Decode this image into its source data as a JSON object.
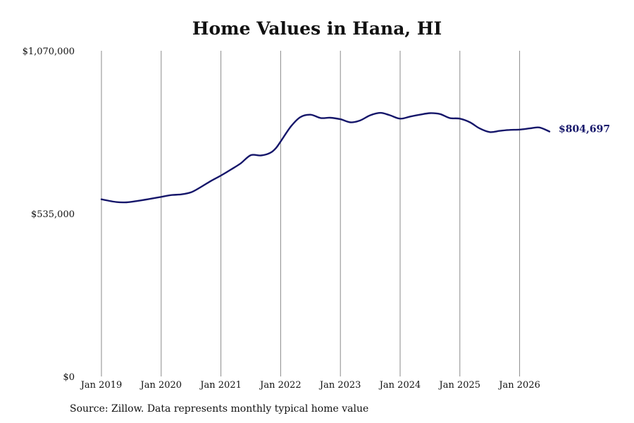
{
  "chart_data": {
    "type": "line",
    "title": "Home Values in Hana, HI",
    "xlabel": "",
    "ylabel": "",
    "ylim": [
      0,
      1070000
    ],
    "y_ticks": [
      {
        "value": 0,
        "label": "$0"
      },
      {
        "value": 535000,
        "label": "$535,000"
      },
      {
        "value": 1070000,
        "label": "$1,070,000"
      }
    ],
    "x_ticks": [
      {
        "value": 2019,
        "label": "Jan 2019"
      },
      {
        "value": 2020,
        "label": "Jan 2020"
      },
      {
        "value": 2021,
        "label": "Jan 2021"
      },
      {
        "value": 2022,
        "label": "Jan 2022"
      },
      {
        "value": 2023,
        "label": "Jan 2023"
      },
      {
        "value": 2024,
        "label": "Jan 2024"
      },
      {
        "value": 2025,
        "label": "Jan 2025"
      },
      {
        "value": 2026,
        "label": "Jan 2026"
      }
    ],
    "xlim": [
      2019,
      2026.5
    ],
    "grid": "vertical",
    "line_color": "#15166a",
    "end_label": "$804,697",
    "series": [
      {
        "x": [
          2019.0,
          2019.25,
          2019.42,
          2019.58,
          2019.83,
          2020.0,
          2020.17,
          2020.33,
          2020.5,
          2020.67,
          2020.83,
          2021.0,
          2021.17,
          2021.33,
          2021.5,
          2021.67,
          2021.83,
          2021.92,
          2022.0,
          2022.17,
          2022.33,
          2022.5,
          2022.67,
          2022.83,
          2023.0,
          2023.17,
          2023.33,
          2023.5,
          2023.67,
          2023.83,
          2024.0,
          2024.17,
          2024.33,
          2024.5,
          2024.67,
          2024.83,
          2025.0,
          2025.17,
          2025.33,
          2025.5,
          2025.67,
          2025.83,
          2026.0,
          2026.17,
          2026.33,
          2026.5
        ],
        "y": [
          582000,
          573000,
          572000,
          576000,
          584000,
          590000,
          596000,
          598000,
          605000,
          623000,
          642000,
          660000,
          680000,
          700000,
          727000,
          726000,
          735000,
          750000,
          772000,
          821000,
          852000,
          860000,
          849000,
          850000,
          845000,
          835000,
          841000,
          858000,
          866000,
          858000,
          847000,
          854000,
          860000,
          865000,
          862000,
          849000,
          847000,
          835000,
          815000,
          803000,
          807000,
          810000,
          811000,
          815000,
          818000,
          804697
        ]
      }
    ]
  },
  "source": "Source: Zillow. Data represents monthly typical home value"
}
